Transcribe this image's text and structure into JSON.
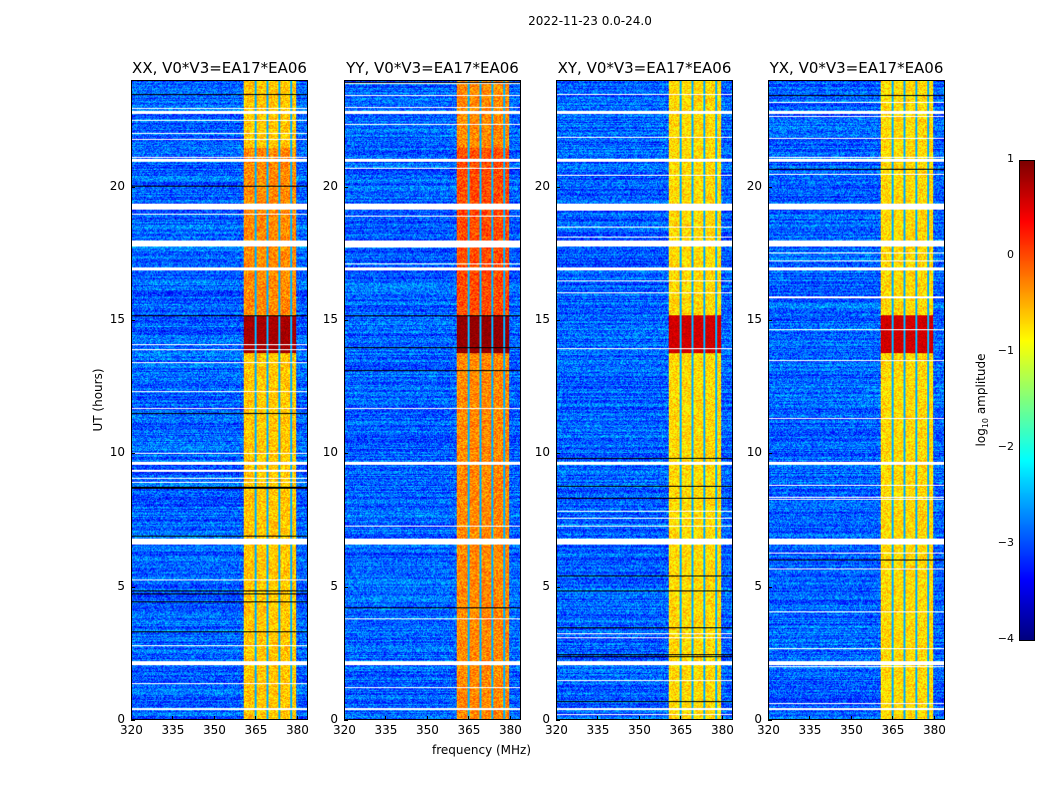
{
  "chart_data": {
    "type": "heatmap",
    "title": "2022-11-23 0.0-24.0",
    "xlabel": "frequency (MHz)",
    "ylabel": "UT (hours)",
    "xlim": [
      320,
      384
    ],
    "ylim": [
      0,
      24
    ],
    "xticks": [
      "320",
      "335",
      "350",
      "365",
      "380"
    ],
    "xtick_values": [
      320,
      335,
      350,
      365,
      380
    ],
    "yticks": [
      "0",
      "5",
      "10",
      "15",
      "20"
    ],
    "ytick_values": [
      0,
      5,
      10,
      15,
      20
    ],
    "panels": [
      {
        "title": "XX, V0*V3=EA17*EA06",
        "band_level": -0.6,
        "peak_level": 0.8
      },
      {
        "title": "YY, V0*V3=EA17*EA06",
        "band_level": -0.3,
        "peak_level": 0.9
      },
      {
        "title": "XY, V0*V3=EA17*EA06",
        "band_level": -0.7,
        "peak_level": 0.6
      },
      {
        "title": "YX, V0*V3=EA17*EA06",
        "band_level": -0.7,
        "peak_level": 0.6
      }
    ],
    "background_level": -2.9,
    "rfi_band_mhz": [
      360.5,
      380
    ],
    "subband_gaps_mhz": [
      365,
      369.3,
      373.7,
      378
    ],
    "peak_ut_range": [
      13.8,
      15.2
    ],
    "flagged_ut_ranges": [
      [
        0.35,
        0.45
      ],
      [
        2.05,
        2.2
      ],
      [
        6.6,
        6.8
      ],
      [
        17.8,
        18.0
      ],
      [
        19.2,
        19.4
      ],
      [
        21.0,
        21.1
      ],
      [
        22.8,
        22.9
      ],
      [
        9.6,
        9.7
      ],
      [
        16.9,
        17.0
      ]
    ],
    "colorbar": {
      "label_prefix": "log",
      "label_sub": "10",
      "label_suffix": " amplitude",
      "range": [
        -4,
        1
      ],
      "ticks": [
        "1",
        "0",
        "−1",
        "−2",
        "−3",
        "−4"
      ],
      "tick_values": [
        1,
        0,
        -1,
        -2,
        -3,
        -4
      ],
      "colormap": "jet"
    }
  }
}
